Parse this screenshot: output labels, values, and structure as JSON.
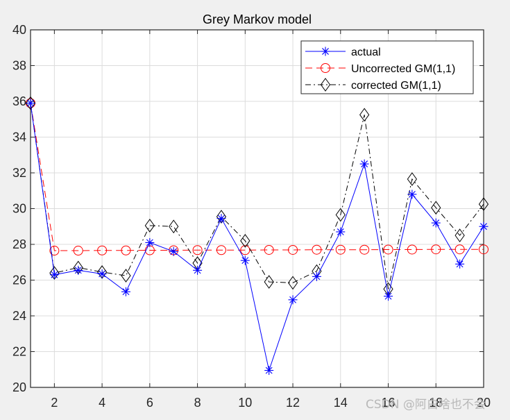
{
  "chart_data": {
    "type": "line",
    "title": "Grey Markov model",
    "xlabel": "",
    "ylabel": "",
    "xlim": [
      1,
      20
    ],
    "ylim": [
      20,
      40
    ],
    "xticks": [
      2,
      4,
      6,
      8,
      10,
      12,
      14,
      16,
      18,
      20
    ],
    "yticks": [
      20,
      22,
      24,
      26,
      28,
      30,
      32,
      34,
      36,
      38,
      40
    ],
    "grid": true,
    "legend_position": "northeast",
    "x": [
      1,
      2,
      3,
      4,
      5,
      6,
      7,
      8,
      9,
      10,
      11,
      12,
      13,
      14,
      15,
      16,
      17,
      18,
      19,
      20
    ],
    "series": [
      {
        "name": "actual",
        "color": "#0000ff",
        "line": "solid",
        "marker": "asterisk",
        "values": [
          35.9,
          26.3,
          26.55,
          26.35,
          25.35,
          28.1,
          27.6,
          26.55,
          29.45,
          27.1,
          20.95,
          24.9,
          26.2,
          28.7,
          32.5,
          25.1,
          30.8,
          29.2,
          26.9,
          29.0
        ]
      },
      {
        "name": "Uncorrected GM(1,1)",
        "color": "#ff0000",
        "line": "dashed",
        "marker": "circle",
        "values": [
          35.9,
          27.65,
          27.65,
          27.66,
          27.66,
          27.67,
          27.67,
          27.68,
          27.68,
          27.68,
          27.69,
          27.69,
          27.7,
          27.7,
          27.7,
          27.71,
          27.71,
          27.72,
          27.72,
          27.72
        ]
      },
      {
        "name": "corrected GM(1,1)",
        "color": "#000000",
        "line": "dashdot",
        "marker": "diamond",
        "values": [
          35.9,
          26.4,
          26.7,
          26.45,
          26.25,
          29.05,
          29.0,
          26.95,
          29.55,
          28.2,
          25.9,
          25.85,
          26.5,
          29.65,
          35.25,
          25.5,
          31.65,
          30.05,
          28.5,
          30.25
        ]
      }
    ]
  },
  "watermark": "CSDN @阿白啥也不会"
}
